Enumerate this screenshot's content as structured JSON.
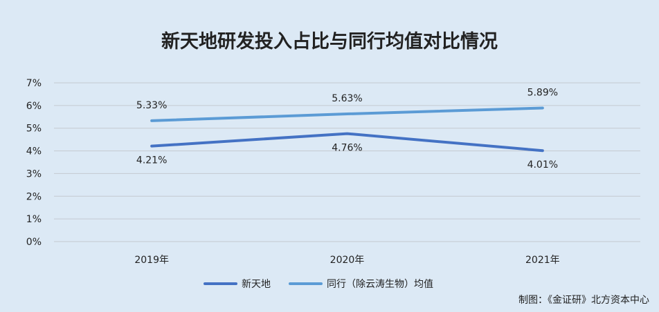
{
  "chart_data": {
    "type": "line",
    "title": "新天地研发投入占比与同行均值对比情况",
    "categories": [
      "2019年",
      "2020年",
      "2021年"
    ],
    "series": [
      {
        "name": "新天地",
        "values": [
          4.21,
          4.76,
          4.01
        ],
        "labels": [
          "4.21%",
          "4.76%",
          "4.01%"
        ],
        "color": "#4472c4"
      },
      {
        "name": "同行（除云涛生物）均值",
        "values": [
          5.33,
          5.63,
          5.89
        ],
        "labels": [
          "5.33%",
          "5.63%",
          "5.89%"
        ],
        "color": "#5b9bd5"
      }
    ],
    "y_ticks": [
      "0%",
      "1%",
      "2%",
      "3%",
      "4%",
      "5%",
      "6%",
      "7%"
    ],
    "ylim": [
      0,
      7
    ],
    "grid": true,
    "legend": "bottom"
  },
  "credit": "制图：《金证研》北方资本中心"
}
